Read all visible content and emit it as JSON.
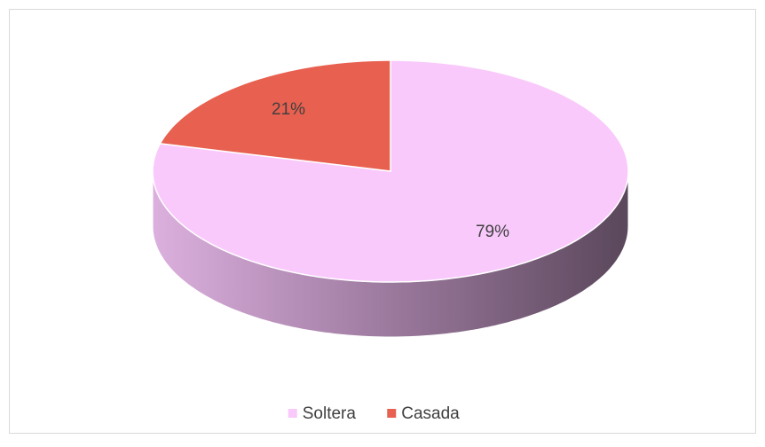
{
  "chart_data": {
    "type": "pie",
    "categories": [
      "Soltera",
      "Casada"
    ],
    "values": [
      79,
      21
    ],
    "value_labels": [
      "79%",
      "21%"
    ],
    "colors": [
      "#f9c9fb",
      "#e8604f"
    ],
    "legend": "bottom"
  }
}
